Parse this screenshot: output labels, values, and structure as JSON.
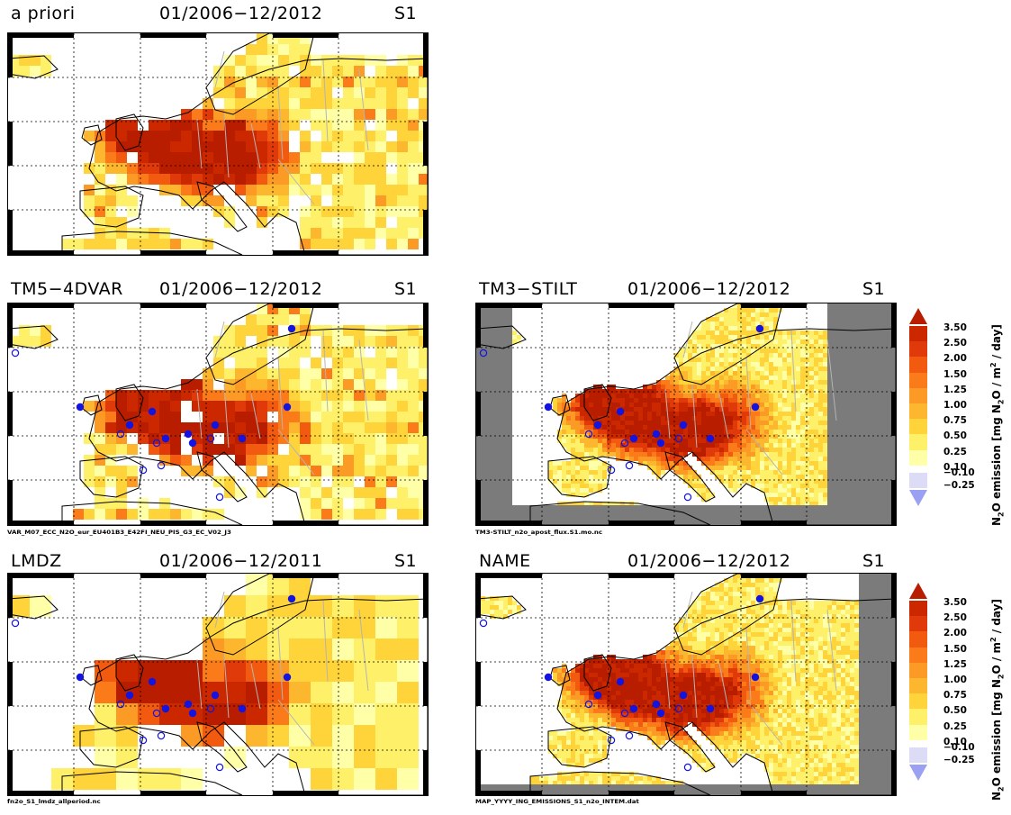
{
  "panels": [
    {
      "id": "apriori",
      "model": "a priori",
      "period": "01/2006−12/2012",
      "scenario": "S1",
      "filename": "",
      "stations": false,
      "open_stations": false,
      "mask": "none",
      "style": "coarse"
    },
    {
      "id": "tm5",
      "model": "TM5−4DVAR",
      "period": "01/2006−12/2012",
      "scenario": "S1",
      "filename": "VAR_M07_ECC_N2O_eur_EU401B3_E42FI_NEU_PIS_G3_EC_V02_J3",
      "stations": true,
      "open_stations": true,
      "mask": "none",
      "style": "coarse"
    },
    {
      "id": "tm3",
      "model": "TM3−STILT",
      "period": "01/2006−12/2012",
      "scenario": "S1",
      "filename": "TM3-STILT_n2o_apost_flux.S1.mo.nc",
      "stations": true,
      "open_stations": true,
      "mask": "frame",
      "style": "fine"
    },
    {
      "id": "lmdz",
      "model": "LMDZ",
      "period": "01/2006−12/2011",
      "scenario": "S1",
      "filename": "fn2o_S1_lmdz_allperiod.nc",
      "stations": true,
      "open_stations": true,
      "mask": "none",
      "style": "blocky"
    },
    {
      "id": "name",
      "model": "NAME",
      "period": "01/2006−12/2012",
      "scenario": "S1",
      "filename": "MAP_YYYY_ING_EMISSIONS_S1_n2o_INTEM.dat",
      "stations": true,
      "open_stations": true,
      "mask": "right",
      "style": "fine"
    }
  ],
  "colorbar": {
    "labels": [
      "3.50",
      "2.50",
      "2.00",
      "1.50",
      "1.25",
      "1.00",
      "0.75",
      "0.50",
      "0.25",
      "0.10",
      "−0.10",
      "−0.25"
    ],
    "colors": [
      "#b81d00",
      "#cc2800",
      "#e03a0a",
      "#f25a0f",
      "#fb7a1a",
      "#fc9a26",
      "#fdb72e",
      "#fed43a",
      "#fff06a",
      "#ffffa8",
      "#dcdcf6",
      "#9aa0f2"
    ],
    "axis_label": "N2O emission [mg N2O / m2 / day]",
    "axis_main": "N",
    "axis_sub1": "2",
    "axis_mid": "O emission  [mg N",
    "axis_sub2": "2",
    "axis_mid2": "O / m",
    "axis_sup": "2",
    "axis_end": " / day]"
  },
  "colors": {
    "station_closed": "#1414e0",
    "station_open": "#1414e0",
    "mask_gray": "#7b7b7b",
    "coast": "#000000",
    "border": "#b4b4b4",
    "grid": "#000000"
  }
}
